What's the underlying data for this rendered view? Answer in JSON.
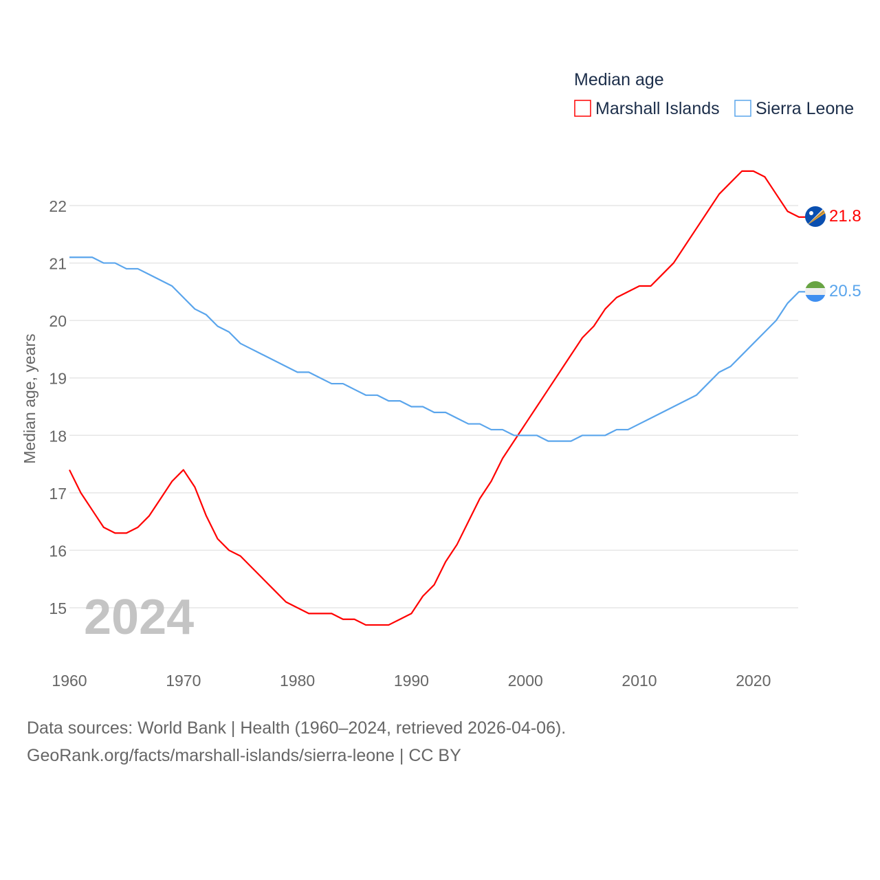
{
  "chart_data": {
    "type": "line",
    "title": "",
    "xlabel": "",
    "ylabel": "Median age, years",
    "xlim": [
      1960,
      2024
    ],
    "ylim": [
      14.2,
      22.9
    ],
    "yticks": [
      "15",
      "16",
      "17",
      "18",
      "19",
      "20",
      "21",
      "22"
    ],
    "xticks": [
      "1960",
      "1970",
      "1980",
      "1990",
      "2000",
      "2010",
      "2020"
    ],
    "grid": true,
    "legend": {
      "title": "Median age",
      "placement": "top-right"
    },
    "year_watermark": "2024",
    "x": [
      1960,
      1961,
      1962,
      1963,
      1964,
      1965,
      1966,
      1967,
      1968,
      1969,
      1970,
      1971,
      1972,
      1973,
      1974,
      1975,
      1976,
      1977,
      1978,
      1979,
      1980,
      1981,
      1982,
      1983,
      1984,
      1985,
      1986,
      1987,
      1988,
      1989,
      1990,
      1991,
      1992,
      1993,
      1994,
      1995,
      1996,
      1997,
      1998,
      1999,
      2000,
      2001,
      2002,
      2003,
      2004,
      2005,
      2006,
      2007,
      2008,
      2009,
      2010,
      2011,
      2012,
      2013,
      2014,
      2015,
      2016,
      2017,
      2018,
      2019,
      2020,
      2021,
      2022,
      2023,
      2024
    ],
    "series": [
      {
        "name": "Marshall Islands",
        "color": "#ff0000",
        "end_label": "21.8",
        "flag": "marshall-islands-flag",
        "values": [
          17.4,
          17.0,
          16.7,
          16.4,
          16.3,
          16.3,
          16.4,
          16.6,
          16.9,
          17.2,
          17.4,
          17.1,
          16.6,
          16.2,
          16.0,
          15.9,
          15.7,
          15.5,
          15.3,
          15.1,
          15.0,
          14.9,
          14.9,
          14.9,
          14.8,
          14.8,
          14.7,
          14.7,
          14.7,
          14.8,
          14.9,
          15.2,
          15.4,
          15.8,
          16.1,
          16.5,
          16.9,
          17.2,
          17.6,
          17.9,
          18.2,
          18.5,
          18.8,
          19.1,
          19.4,
          19.7,
          19.9,
          20.2,
          20.4,
          20.5,
          20.6,
          20.6,
          20.8,
          21.0,
          21.3,
          21.6,
          21.9,
          22.2,
          22.4,
          22.6,
          22.6,
          22.5,
          22.2,
          21.9,
          21.8
        ]
      },
      {
        "name": "Sierra Leone",
        "color": "#5aa5ec",
        "end_label": "20.5",
        "flag": "sierra-leone-flag",
        "values": [
          21.1,
          21.1,
          21.1,
          21.0,
          21.0,
          20.9,
          20.9,
          20.8,
          20.7,
          20.6,
          20.4,
          20.2,
          20.1,
          19.9,
          19.8,
          19.6,
          19.5,
          19.4,
          19.3,
          19.2,
          19.1,
          19.1,
          19.0,
          18.9,
          18.9,
          18.8,
          18.7,
          18.7,
          18.6,
          18.6,
          18.5,
          18.5,
          18.4,
          18.4,
          18.3,
          18.2,
          18.2,
          18.1,
          18.1,
          18.0,
          18.0,
          18.0,
          17.9,
          17.9,
          17.9,
          18.0,
          18.0,
          18.0,
          18.1,
          18.1,
          18.2,
          18.3,
          18.4,
          18.5,
          18.6,
          18.7,
          18.9,
          19.1,
          19.2,
          19.4,
          19.6,
          19.8,
          20.0,
          20.3,
          20.5
        ]
      }
    ]
  },
  "footer": {
    "line1": "Data sources: World Bank | Health (1960–2024, retrieved 2026-04-06).",
    "line2": "GeoRank.org/facts/marshall-islands/sierra-leone | CC BY"
  }
}
